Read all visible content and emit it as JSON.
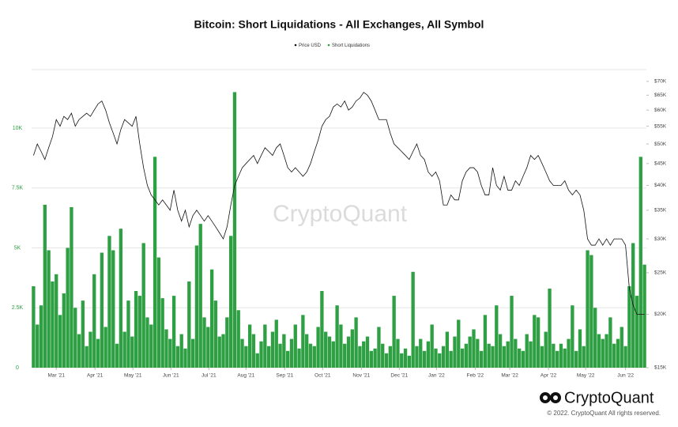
{
  "chart_data": {
    "type": "bar_line",
    "title": "Bitcoin: Short Liquidations - All Exchanges, All Symbol",
    "watermark": "CryptoQuant",
    "legend": "top",
    "grid": true,
    "xlim": [
      0,
      162
    ],
    "xticks": [
      {
        "value": 6.5,
        "label": "Mar '21"
      },
      {
        "value": 16.7,
        "label": "Apr '21"
      },
      {
        "value": 26.7,
        "label": "May '21"
      },
      {
        "value": 36.7,
        "label": "Jun '21"
      },
      {
        "value": 46.7,
        "label": "Jul '21"
      },
      {
        "value": 56.5,
        "label": "Aug '21"
      },
      {
        "value": 66.7,
        "label": "Sep '21"
      },
      {
        "value": 76.7,
        "label": "Oct '21"
      },
      {
        "value": 86.9,
        "label": "Nov '21"
      },
      {
        "value": 96.9,
        "label": "Dec '21"
      },
      {
        "value": 106.7,
        "label": "Jan '22"
      },
      {
        "value": 116.9,
        "label": "Feb '22"
      },
      {
        "value": 126,
        "label": "Mar '22"
      },
      {
        "value": 136.2,
        "label": "Apr '22"
      },
      {
        "value": 146,
        "label": "May '22"
      },
      {
        "value": 156.5,
        "label": "Jun '22"
      }
    ],
    "ylim": [
      0,
      12440
    ],
    "yticks": [
      0,
      {
        "value": 2500,
        "label": "2.5K"
      },
      {
        "value": 5000,
        "label": "5K"
      },
      {
        "value": 7500,
        "label": "7.5K"
      },
      {
        "value": 10000,
        "label": "10K"
      }
    ],
    "y2log": true,
    "y2lim": [
      15000,
      74600
    ],
    "y2ticks": [
      {
        "value": 15000,
        "label": "$15K"
      },
      {
        "value": 20000,
        "label": "$20K"
      },
      {
        "value": 25000,
        "label": "$25K"
      },
      {
        "value": 30000,
        "label": "$30K"
      },
      {
        "value": 35000,
        "label": "$35K"
      },
      {
        "value": 40000,
        "label": "$40K"
      },
      {
        "value": 45000,
        "label": "$45K"
      },
      {
        "value": 50000,
        "label": "$50K"
      },
      {
        "value": 55000,
        "label": "$55K"
      },
      {
        "value": 60000,
        "label": "$60K"
      },
      {
        "value": 65000,
        "label": "$65K"
      },
      {
        "value": 70000,
        "label": "$70K"
      }
    ],
    "series": [
      {
        "name": "Price USD",
        "color": "#111111",
        "type": "line",
        "axis": "y2",
        "values": [
          47000,
          50000,
          48000,
          46000,
          49000,
          52000,
          57000,
          55000,
          58000,
          57000,
          59000,
          55000,
          57000,
          58000,
          59000,
          58000,
          60000,
          62000,
          63000,
          60000,
          56000,
          53000,
          50000,
          54000,
          57000,
          56000,
          55000,
          58000,
          50000,
          44000,
          40000,
          38000,
          37000,
          36000,
          37000,
          36000,
          35000,
          39000,
          35000,
          33000,
          35000,
          32000,
          34000,
          35000,
          34000,
          33000,
          34000,
          33000,
          32000,
          31000,
          30000,
          32000,
          36000,
          40000,
          42000,
          44000,
          45000,
          46000,
          47000,
          45000,
          47000,
          49000,
          48000,
          47000,
          49000,
          50000,
          47000,
          44000,
          43000,
          44000,
          43000,
          42000,
          43000,
          45000,
          48000,
          51000,
          55000,
          57000,
          58000,
          61000,
          62000,
          61000,
          63000,
          60000,
          61000,
          63000,
          64000,
          66000,
          65000,
          63000,
          60000,
          57000,
          57000,
          57000,
          53000,
          50000,
          49000,
          48000,
          47000,
          46000,
          48000,
          50000,
          47000,
          46000,
          43000,
          42000,
          43000,
          41000,
          36000,
          36000,
          38000,
          37000,
          37000,
          41000,
          43000,
          44000,
          44000,
          43000,
          40000,
          38000,
          38000,
          44000,
          40000,
          39000,
          42000,
          39000,
          39000,
          41000,
          40000,
          42000,
          44000,
          47000,
          46000,
          47000,
          45000,
          43000,
          41000,
          40000,
          40000,
          40000,
          41000,
          39000,
          38000,
          39000,
          38000,
          35000,
          30000,
          29000,
          29000,
          30000,
          29000,
          30000,
          29000,
          30000,
          30000,
          30000,
          29000,
          23000,
          21000,
          20000,
          20000,
          20000
        ]
      },
      {
        "name": "Short Liquidations",
        "color": "#2ea043",
        "type": "bar",
        "axis": "y",
        "values": [
          3400,
          1800,
          2600,
          6800,
          4900,
          3600,
          3900,
          2200,
          3100,
          5000,
          6700,
          2500,
          1400,
          2800,
          900,
          1500,
          3900,
          1200,
          4800,
          1700,
          5500,
          4900,
          1000,
          5800,
          1500,
          2800,
          1300,
          3200,
          3000,
          5200,
          2100,
          1800,
          8800,
          4600,
          2900,
          1600,
          1200,
          3000,
          900,
          1400,
          800,
          3600,
          1200,
          5100,
          6000,
          2100,
          1700,
          4100,
          2800,
          1300,
          1400,
          2100,
          5500,
          11500,
          2400,
          1200,
          900,
          1800,
          1400,
          600,
          1100,
          1800,
          900,
          1500,
          2000,
          1000,
          1400,
          700,
          1200,
          1800,
          800,
          2200,
          1400,
          1000,
          900,
          1700,
          3200,
          1500,
          1300,
          1100,
          2600,
          1800,
          1000,
          1300,
          1600,
          2100,
          900,
          1100,
          1300,
          700,
          800,
          1700,
          1000,
          600,
          900,
          3000,
          1200,
          600,
          800,
          500,
          4000,
          900,
          1200,
          700,
          1100,
          1800,
          800,
          600,
          900,
          1500,
          700,
          1300,
          2000,
          800,
          1000,
          1300,
          1600,
          1200,
          700,
          2200,
          1000,
          900,
          2600,
          1400,
          900,
          1100,
          3000,
          1200,
          800,
          700,
          1400,
          1100,
          2200,
          2100,
          900,
          1500,
          3300,
          1000,
          700,
          1000,
          800,
          1200,
          2600,
          700,
          1600,
          900,
          4900,
          4700,
          2500,
          1400,
          1200,
          1400,
          2100,
          1000,
          1200,
          1700,
          900,
          3400,
          5200,
          3000,
          8800,
          4300
        ]
      }
    ]
  },
  "footer": {
    "brand": "CryptoQuant",
    "copyright": "© 2022. CryptoQuant All rights reserved."
  }
}
